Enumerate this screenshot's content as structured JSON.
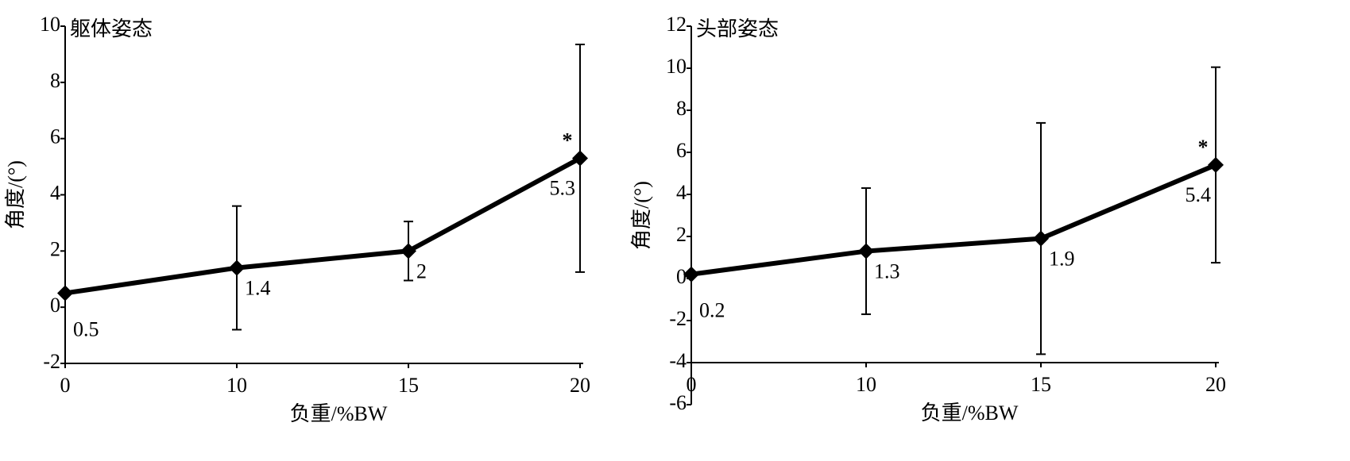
{
  "chart_data": [
    {
      "type": "line",
      "title": "躯体姿态",
      "x_label": "负重/%BW",
      "y_label": "角度/(°)",
      "categories": [
        "0",
        "10",
        "15",
        "20"
      ],
      "series": [
        {
          "color": "#000000",
          "values": [
            0.5,
            1.4,
            2.0,
            5.3
          ],
          "errors": [
            0,
            2.2,
            1.05,
            4.05
          ]
        }
      ],
      "ylim": [
        -2,
        10
      ],
      "yticks": [
        -2,
        0,
        2,
        4,
        6,
        8,
        10
      ],
      "x_axis_at": -2,
      "annotations": [
        {
          "text": "*",
          "index": 3
        }
      ]
    },
    {
      "type": "line",
      "title": "头部姿态",
      "x_label": "负重/%BW",
      "y_label": "角度/(°)",
      "categories": [
        "0",
        "10",
        "15",
        "20"
      ],
      "series": [
        {
          "color": "#000000",
          "values": [
            0.2,
            1.3,
            1.9,
            5.4
          ],
          "errors": [
            0,
            3.0,
            5.5,
            4.65
          ]
        }
      ],
      "ylim": [
        -6,
        12
      ],
      "yticks": [
        -6,
        -4,
        -2,
        0,
        2,
        4,
        6,
        8,
        10,
        12
      ],
      "x_axis_at": -4,
      "annotations": [
        {
          "text": "*",
          "index": 3
        }
      ]
    }
  ]
}
